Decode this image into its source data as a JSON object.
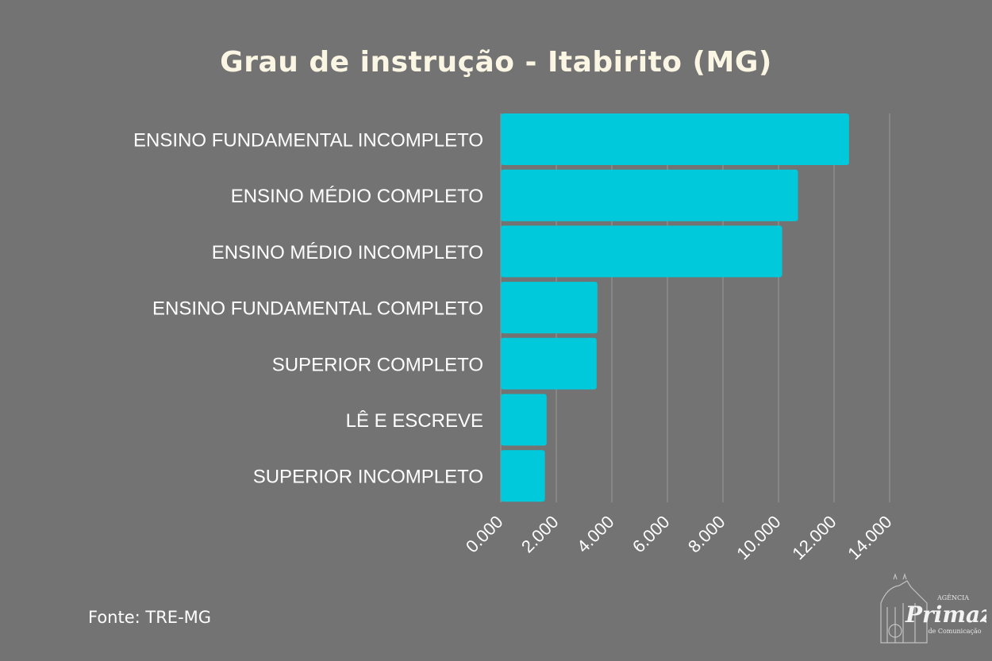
{
  "chart_data": {
    "type": "bar",
    "orientation": "horizontal",
    "title": "Grau de instrução - Itabirito (MG)",
    "categories": [
      "ENSINO FUNDAMENTAL INCOMPLETO",
      "ENSINO MÉDIO COMPLETO",
      "ENSINO MÉDIO INCOMPLETO",
      "ENSINO FUNDAMENTAL COMPLETO",
      "SUPERIOR COMPLETO",
      "LÊ E ESCREVE",
      "SUPERIOR INCOMPLETO"
    ],
    "values": [
      12540,
      10700,
      10130,
      3480,
      3450,
      1650,
      1590
    ],
    "xlim": [
      0,
      14000
    ],
    "xticks": [
      0,
      2000,
      4000,
      6000,
      8000,
      10000,
      12000,
      14000
    ],
    "xtick_labels": [
      "0.000",
      "2.000",
      "4.000",
      "6.000",
      "8.000",
      "10.000",
      "12.000",
      "14.000"
    ],
    "grid": "vertical",
    "bar_color": "#00c9db",
    "background": "#737373"
  },
  "source": "Fonte: TRE-MG",
  "logo": {
    "text": "Agência Primaz de Comunicação"
  }
}
